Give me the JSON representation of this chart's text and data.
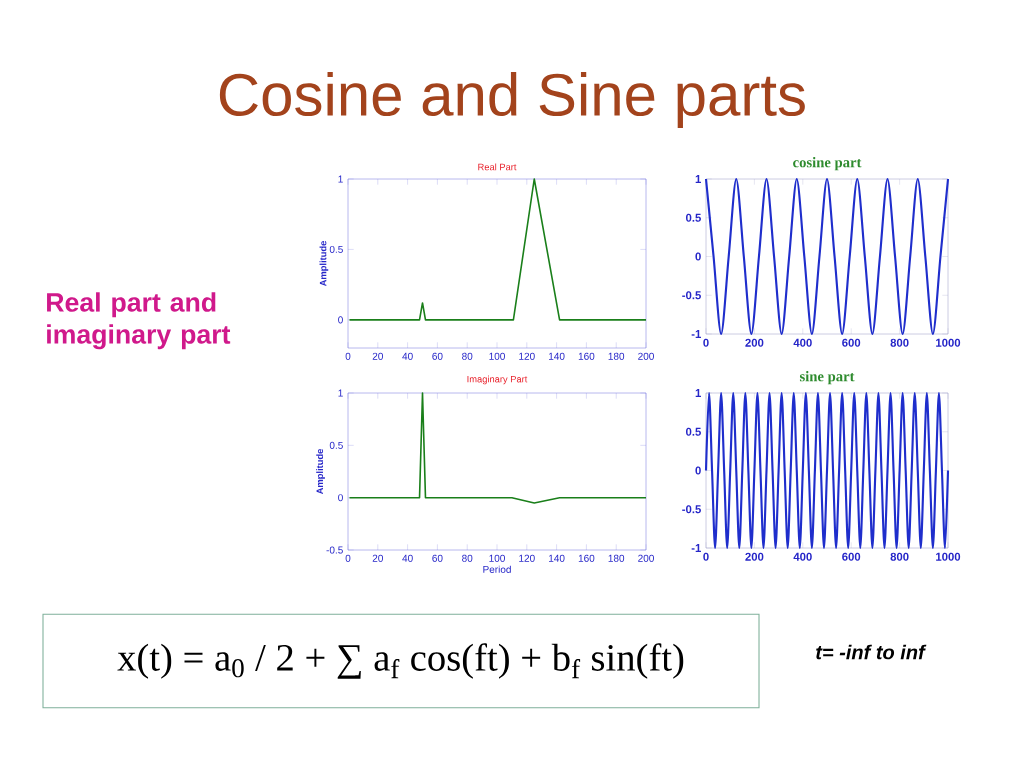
{
  "chart_data": [
    {
      "type": "other",
      "title": "Cosine and Sine parts",
      "annotations": [
        "Real part and imaginary part",
        "x(t) = a$_{0}$ / 2 + ∑ a$_{f}$ cos(ft) + b$_{f}$ sin(ft)",
        "t= -inf to inf"
      ]
    },
    {
      "type": "line",
      "title": "Real Part",
      "ylabel": "Amplitude",
      "xlim": [
        0,
        200
      ],
      "ylim": [
        -0.2,
        1
      ],
      "xticks": [
        0,
        20,
        40,
        60,
        80,
        100,
        120,
        140,
        160,
        180,
        200
      ],
      "yticks": [
        0,
        0.5,
        1
      ],
      "series": [
        {
          "color": "#1A7F1A",
          "x": [
            1,
            48,
            50,
            52,
            111,
            125,
            142,
            200
          ],
          "values": [
            0,
            0,
            0.12,
            0,
            0,
            1,
            0,
            0
          ]
        }
      ]
    },
    {
      "type": "line",
      "title": "Imaginary Part",
      "xlabel": "Period",
      "ylabel": "Amplitude",
      "xlim": [
        0,
        200
      ],
      "ylim": [
        -0.5,
        1
      ],
      "xticks": [
        0,
        20,
        40,
        60,
        80,
        100,
        120,
        140,
        160,
        180,
        200
      ],
      "yticks": [
        -0.5,
        0,
        0.5,
        1
      ],
      "series": [
        {
          "color": "#1A7F1A",
          "x": [
            1,
            48,
            50,
            52,
            110,
            125,
            142,
            200
          ],
          "values": [
            0,
            0,
            1,
            0,
            0,
            -0.05,
            0,
            0
          ]
        }
      ]
    },
    {
      "type": "line",
      "title": "cosine part",
      "xlim": [
        0,
        1000
      ],
      "ylim": [
        -1,
        1
      ],
      "xticks": [
        0,
        200,
        400,
        600,
        800,
        1000
      ],
      "yticks": [
        -1,
        -0.5,
        0,
        0.5,
        1
      ],
      "series": [
        {
          "color": "#1F2ECC",
          "x": [
            0,
            31.25,
            62.5,
            93.75,
            125,
            156.25,
            187.5,
            218.75,
            250,
            281.25,
            312.5,
            343.75,
            375,
            406.25,
            437.5,
            468.75,
            500,
            531.25,
            562.5,
            593.75,
            625,
            656.25,
            687.5,
            718.75,
            750,
            781.25,
            812.5,
            843.75,
            875,
            906.25,
            937.5,
            968.75,
            1000
          ],
          "values": [
            1,
            0,
            -1,
            0,
            1,
            0,
            -1,
            0,
            1,
            0,
            -1,
            0,
            1,
            0,
            -1,
            0,
            1,
            0,
            -1,
            0,
            1,
            0,
            -1,
            0,
            1,
            0,
            -1,
            0,
            1,
            0,
            -1,
            0,
            1
          ]
        }
      ]
    },
    {
      "type": "line",
      "title": "sine part",
      "xlim": [
        0,
        1000
      ],
      "ylim": [
        -1,
        1
      ],
      "xticks": [
        0,
        200,
        400,
        600,
        800,
        1000
      ],
      "yticks": [
        -1,
        -0.5,
        0,
        0.5,
        1
      ],
      "series": [
        {
          "color": "#1F2ECC",
          "x": [
            0,
            12.5,
            25,
            37.5,
            50,
            62.5,
            75,
            87.5,
            100,
            112.5,
            125,
            137.5,
            150,
            162.5,
            175,
            187.5,
            200,
            212.5,
            225,
            237.5,
            250,
            262.5,
            275,
            287.5,
            300,
            312.5,
            325,
            337.5,
            350,
            362.5,
            375,
            387.5,
            400,
            412.5,
            425,
            437.5,
            450,
            462.5,
            475,
            487.5,
            500,
            512.5,
            525,
            537.5,
            550,
            562.5,
            575,
            587.5,
            600,
            612.5,
            625,
            637.5,
            650,
            662.5,
            675,
            687.5,
            700,
            712.5,
            725,
            737.5,
            750,
            762.5,
            775,
            787.5,
            800,
            812.5,
            825,
            837.5,
            850,
            862.5,
            875,
            887.5,
            900,
            912.5,
            925,
            937.5,
            950,
            962.5,
            975,
            987.5,
            1000
          ],
          "values": [
            0,
            1,
            0,
            -1,
            0,
            1,
            0,
            -1,
            0,
            1,
            0,
            -1,
            0,
            1,
            0,
            -1,
            0,
            1,
            0,
            -1,
            0,
            1,
            0,
            -1,
            0,
            1,
            0,
            -1,
            0,
            1,
            0,
            -1,
            0,
            1,
            0,
            -1,
            0,
            1,
            0,
            -1,
            0,
            1,
            0,
            -1,
            0,
            1,
            0,
            -1,
            0,
            1,
            0,
            -1,
            0,
            1,
            0,
            -1,
            0,
            1,
            0,
            -1,
            0,
            1,
            0,
            -1,
            0,
            1,
            0,
            -1,
            0,
            1,
            0,
            -1,
            0,
            1,
            0,
            -1,
            0,
            1,
            0,
            -1,
            0
          ]
        }
      ]
    }
  ]
}
